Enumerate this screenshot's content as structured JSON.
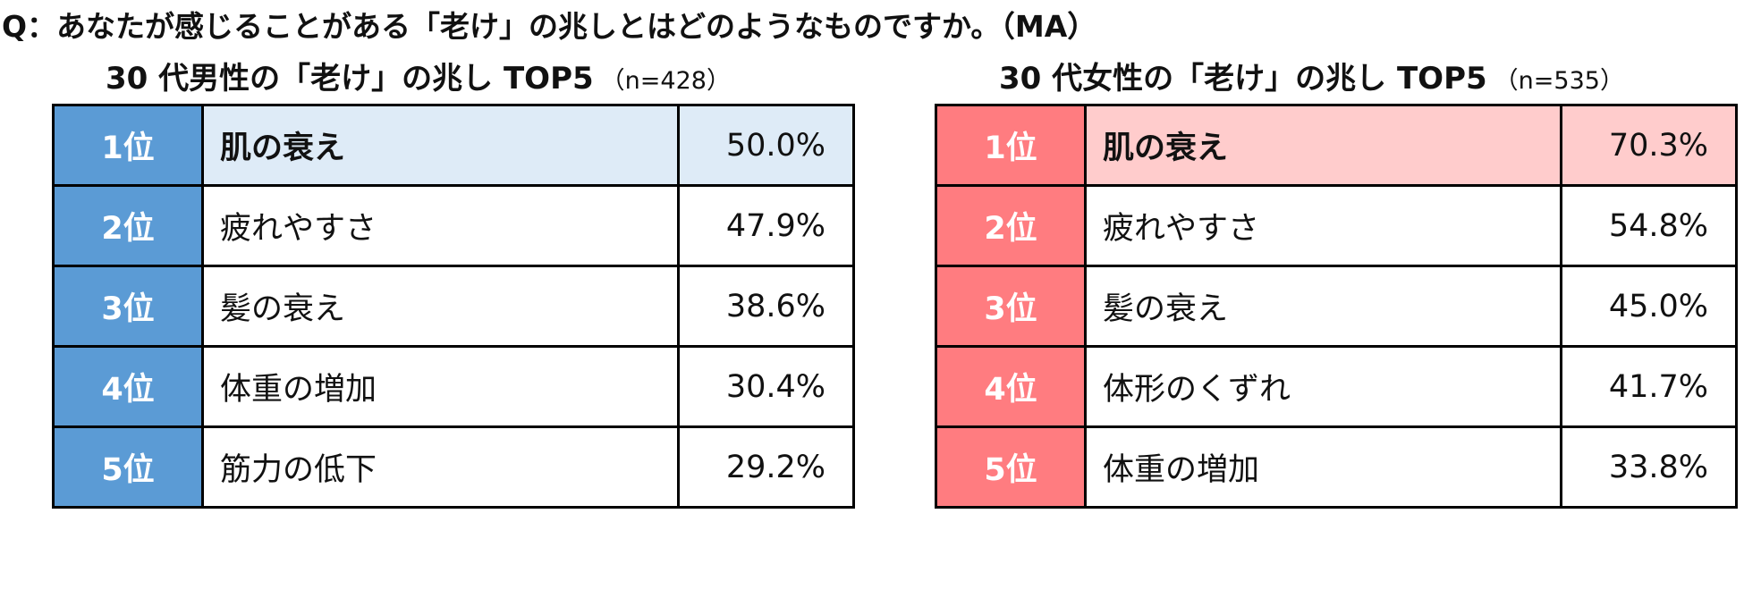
{
  "question": "Q：あなたが感じることがある「老け」の兆しとはどのようなものですか。（MA）",
  "colors": {
    "men_rank_bg": "#5b9bd5",
    "men_top_row_bg": "#deebf7",
    "women_rank_bg": "#ff7c80",
    "women_top_row_bg": "#ffcccc"
  },
  "panels": [
    {
      "title": "30 代男性の「老け」の兆し TOP5",
      "sample": "（n=428）",
      "rows": [
        {
          "rank": "1位",
          "item": "肌の衰え",
          "value": "50.0%"
        },
        {
          "rank": "2位",
          "item": "疲れやすさ",
          "value": "47.9%"
        },
        {
          "rank": "3位",
          "item": "髪の衰え",
          "value": "38.6%"
        },
        {
          "rank": "4位",
          "item": "体重の増加",
          "value": "30.4%"
        },
        {
          "rank": "5位",
          "item": "筋力の低下",
          "value": "29.2%"
        }
      ]
    },
    {
      "title": "30 代女性の「老け」の兆し TOP5",
      "sample": "（n=535）",
      "rows": [
        {
          "rank": "1位",
          "item": "肌の衰え",
          "value": "70.3%"
        },
        {
          "rank": "2位",
          "item": "疲れやすさ",
          "value": "54.8%"
        },
        {
          "rank": "3位",
          "item": "髪の衰え",
          "value": "45.0%"
        },
        {
          "rank": "4位",
          "item": "体形のくずれ",
          "value": "41.7%"
        },
        {
          "rank": "5位",
          "item": "体重の増加",
          "value": "33.8%"
        }
      ]
    }
  ]
}
